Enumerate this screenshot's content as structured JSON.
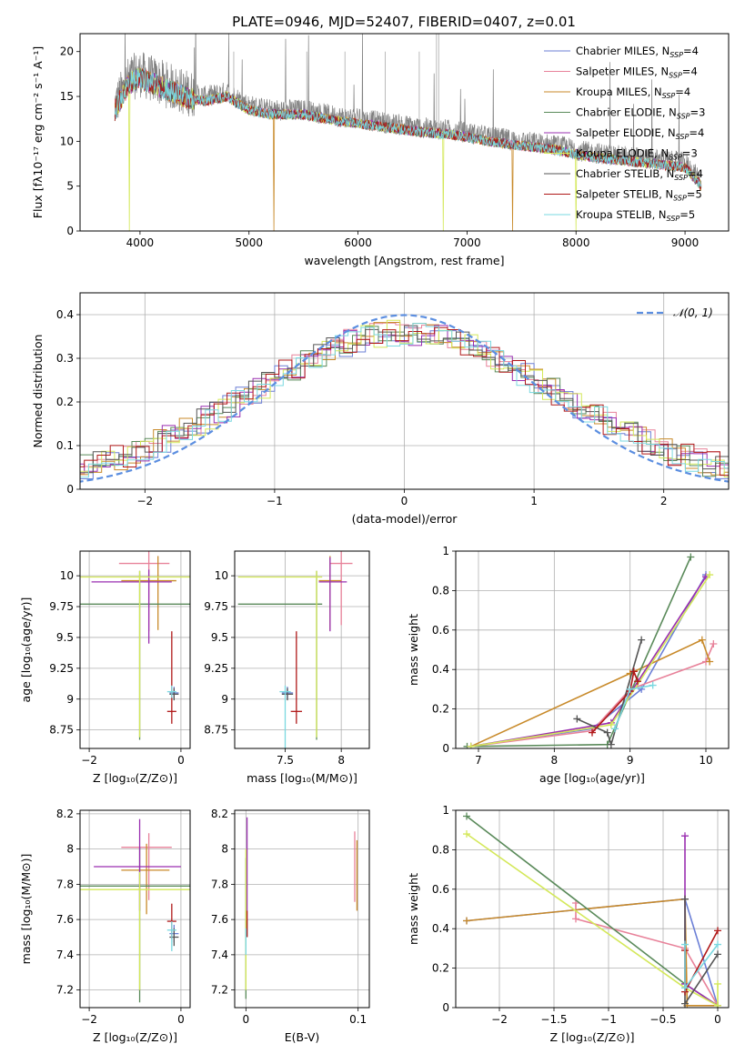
{
  "figure_title": "PLATE=0946, MJD=52407, FIBERID=0407, z=0.01",
  "models": [
    {
      "name": "Chabrier MILES",
      "nssp": "4",
      "color": "#6b7fd6"
    },
    {
      "name": "Salpeter MILES",
      "nssp": "4",
      "color": "#e8829a"
    },
    {
      "name": "Kroupa MILES",
      "nssp": "4",
      "color": "#c88a2a"
    },
    {
      "name": "Chabrier ELODIE",
      "nssp": "3",
      "color": "#5a8a5a"
    },
    {
      "name": "Salpeter ELODIE",
      "nssp": "4",
      "color": "#9a2fb0"
    },
    {
      "name": "Kroupa ELODIE",
      "nssp": "3",
      "color": "#d4e85a"
    },
    {
      "name": "Chabrier STELIB",
      "nssp": "4",
      "color": "#555555"
    },
    {
      "name": "Salpeter STELIB",
      "nssp": "5",
      "color": "#b01818"
    },
    {
      "name": "Kroupa STELIB",
      "nssp": "5",
      "color": "#7ad8e0"
    }
  ],
  "chart_data": [
    {
      "type": "line",
      "id": "spectrum",
      "xlabel": "wavelength [Angstrom, rest frame]",
      "ylabel": "Flux [fλ10⁻¹⁷ erg cm⁻² s⁻¹ A⁻¹]",
      "xlim": [
        3450,
        9400
      ],
      "ylim": [
        0,
        22
      ],
      "xticks": [
        4000,
        5000,
        6000,
        7000,
        8000,
        9000
      ],
      "yticks": [
        0,
        5,
        10,
        15,
        20
      ],
      "data_envelope": {
        "x": [
          3770,
          3900,
          4000,
          4200,
          4400,
          4600,
          4800,
          5000,
          5200,
          5500,
          5800,
          6000,
          6300,
          6600,
          6900,
          7200,
          7500,
          7800,
          8100,
          8400,
          8700,
          9000,
          9150
        ],
        "y": [
          14,
          17,
          17.5,
          16.5,
          15.5,
          15,
          15.5,
          14,
          13.5,
          13.5,
          12.8,
          12.5,
          12,
          11.5,
          11.2,
          10.5,
          10,
          9.6,
          8.8,
          8.4,
          8,
          7.6,
          5.5
        ]
      },
      "model_drops": [
        {
          "model": "Kroupa ELODIE",
          "x": 3900
        },
        {
          "model": "Kroupa MILES",
          "x": 5230
        },
        {
          "model": "Kroupa ELODIE",
          "x": 6780
        },
        {
          "model": "Kroupa MILES",
          "x": 7420
        },
        {
          "model": "Kroupa ELODIE",
          "x": 8000
        }
      ],
      "grid": false,
      "legend": "upper-right"
    },
    {
      "type": "histogram",
      "id": "residuals",
      "xlabel": "(data-model)/error",
      "ylabel": "Normed distribution",
      "xlim": [
        -2.5,
        2.5
      ],
      "ylim": [
        0,
        0.45
      ],
      "xticks": [
        -2,
        -1,
        0,
        1,
        2
      ],
      "yticks": [
        0.0,
        0.1,
        0.2,
        0.3,
        0.4
      ],
      "reference_label": "𝒩(0, 1)",
      "grid": true,
      "legend": "upper-right"
    },
    {
      "type": "scatter",
      "id": "age_vs_Z",
      "xlabel": "Z [log₁₀(Z/Z⊙)]",
      "ylabel": "age [log₁₀(age/yr)]",
      "xlim": [
        -2.2,
        0.2
      ],
      "ylim": [
        8.6,
        10.2
      ],
      "xticks": [
        -2,
        0
      ],
      "yticks": [
        8.75,
        9.0,
        9.25,
        9.5,
        9.75,
        10.0
      ],
      "points": [
        {
          "model": "Chabrier MILES",
          "x": -0.15,
          "y": 9.05,
          "xerr": [
            0.1,
            0.1
          ],
          "yerr": [
            0.05,
            0.05
          ]
        },
        {
          "model": "Salpeter MILES",
          "x": -0.7,
          "y": 10.1,
          "xerr": [
            0.65,
            0.45
          ],
          "yerr": [
            0.55,
            0.1
          ]
        },
        {
          "model": "Kroupa MILES",
          "x": -0.5,
          "y": 9.96,
          "xerr": [
            0.8,
            0.4
          ],
          "yerr": [
            0.4,
            0.2
          ]
        },
        {
          "model": "Chabrier ELODIE",
          "x": -0.9,
          "y": 9.77,
          "xerr": [
            1.3,
            1.1
          ],
          "yerr": [
            1.1,
            0.27
          ]
        },
        {
          "model": "Salpeter ELODIE",
          "x": -0.7,
          "y": 9.95,
          "xerr": [
            1.25,
            0.5
          ],
          "yerr": [
            0.5,
            0.1
          ]
        },
        {
          "model": "Kroupa ELODIE",
          "x": -0.9,
          "y": 9.99,
          "xerr": [
            1.3,
            1.1
          ],
          "yerr": [
            1.3,
            0.05
          ]
        },
        {
          "model": "Chabrier STELIB",
          "x": -0.15,
          "y": 9.04,
          "xerr": [
            0.1,
            0.1
          ],
          "yerr": [
            0.05,
            0.05
          ]
        },
        {
          "model": "Salpeter STELIB",
          "x": -0.2,
          "y": 8.9,
          "xerr": [
            0.1,
            0.1
          ],
          "yerr": [
            0.1,
            0.65
          ]
        },
        {
          "model": "Kroupa STELIB",
          "x": -0.2,
          "y": 9.06,
          "xerr": [
            0.1,
            0.1
          ],
          "yerr": [
            0.05,
            0.05
          ]
        }
      ],
      "grid": true
    },
    {
      "type": "scatter",
      "id": "age_vs_mass",
      "xlabel": "mass [log₁₀(M/M⊙)]",
      "ylabel": "",
      "xlim": [
        7.05,
        8.25
      ],
      "ylim": [
        8.6,
        10.2
      ],
      "xticks": [
        7.5,
        8.0
      ],
      "yticks": [
        8.75,
        9.0,
        9.25,
        9.5,
        9.75,
        10.0
      ],
      "points": [
        {
          "model": "Chabrier MILES",
          "x": 7.52,
          "y": 9.05,
          "xerr": [
            0.05,
            0.05
          ],
          "yerr": [
            0.05,
            0.05
          ]
        },
        {
          "model": "Salpeter MILES",
          "x": 8.0,
          "y": 10.1,
          "xerr": [
            0.1,
            0.1
          ],
          "yerr": [
            0.5,
            0.1
          ]
        },
        {
          "model": "Kroupa MILES",
          "x": 7.9,
          "y": 9.96,
          "xerr": [
            0.1,
            0.1
          ],
          "yerr": [
            0.4,
            0.2
          ]
        },
        {
          "model": "Chabrier ELODIE",
          "x": 7.78,
          "y": 9.77,
          "xerr": [
            0.7,
            0.05
          ],
          "yerr": [
            1.1,
            0.27
          ]
        },
        {
          "model": "Salpeter ELODIE",
          "x": 7.9,
          "y": 9.95,
          "xerr": [
            0.1,
            0.15
          ],
          "yerr": [
            0.4,
            0.2
          ]
        },
        {
          "model": "Kroupa ELODIE",
          "x": 7.78,
          "y": 9.99,
          "xerr": [
            0.7,
            0.05
          ],
          "yerr": [
            1.3,
            0.05
          ]
        },
        {
          "model": "Chabrier STELIB",
          "x": 7.52,
          "y": 9.04,
          "xerr": [
            0.05,
            0.05
          ],
          "yerr": [
            0.05,
            0.05
          ]
        },
        {
          "model": "Salpeter STELIB",
          "x": 7.6,
          "y": 8.9,
          "xerr": [
            0.05,
            0.05
          ],
          "yerr": [
            0.1,
            0.65
          ]
        },
        {
          "model": "Kroupa STELIB",
          "x": 7.5,
          "y": 9.06,
          "xerr": [
            0.05,
            0.05
          ],
          "yerr": [
            0.5,
            0.05
          ]
        }
      ],
      "grid": true
    },
    {
      "type": "line",
      "id": "massweight_vs_age",
      "xlabel": "age [log₁₀(age/yr)]",
      "ylabel": "mass weight",
      "xlim": [
        6.7,
        10.3
      ],
      "ylim": [
        0,
        1.0
      ],
      "xticks": [
        7,
        8,
        9,
        10
      ],
      "yticks": [
        0.0,
        0.2,
        0.4,
        0.6,
        0.8,
        1.0
      ],
      "series": [
        {
          "model": "Chabrier MILES",
          "x": [
            6.9,
            8.5,
            9.15,
            10.0
          ],
          "y": [
            0.01,
            0.1,
            0.3,
            0.88
          ]
        },
        {
          "model": "Salpeter MILES",
          "x": [
            6.9,
            8.5,
            9.0,
            10.0,
            10.1
          ],
          "y": [
            0.01,
            0.09,
            0.3,
            0.44,
            0.53
          ]
        },
        {
          "model": "Kroupa MILES",
          "x": [
            6.9,
            9.0,
            9.95,
            10.05
          ],
          "y": [
            0.01,
            0.38,
            0.55,
            0.44
          ]
        },
        {
          "model": "Chabrier ELODIE",
          "x": [
            6.85,
            8.7,
            9.8
          ],
          "y": [
            0.01,
            0.02,
            0.97
          ]
        },
        {
          "model": "Salpeter ELODIE",
          "x": [
            6.9,
            8.75,
            10.0
          ],
          "y": [
            0.01,
            0.13,
            0.87
          ]
        },
        {
          "model": "Kroupa ELODIE",
          "x": [
            6.9,
            8.75,
            10.05
          ],
          "y": [
            0.01,
            0.12,
            0.88
          ]
        },
        {
          "model": "Chabrier STELIB",
          "x": [
            8.3,
            8.7,
            8.75,
            9.15
          ],
          "y": [
            0.15,
            0.08,
            0.02,
            0.55
          ]
        },
        {
          "model": "Salpeter STELIB",
          "x": [
            8.5,
            9.0,
            9.05,
            9.1
          ],
          "y": [
            0.08,
            0.29,
            0.39,
            0.34
          ]
        },
        {
          "model": "Kroupa STELIB",
          "x": [
            8.8,
            9.0,
            9.3
          ],
          "y": [
            0.1,
            0.3,
            0.32
          ]
        }
      ],
      "grid": true
    },
    {
      "type": "scatter",
      "id": "mass_vs_Z",
      "xlabel": "Z [log₁₀(Z/Z⊙)]",
      "ylabel": "mass [log₁₀(M/M⊙)]",
      "xlim": [
        -2.2,
        0.2
      ],
      "ylim": [
        7.1,
        8.22
      ],
      "xticks": [
        -2,
        0
      ],
      "yticks": [
        7.2,
        7.4,
        7.6,
        7.8,
        8.0,
        8.2
      ],
      "points": [
        {
          "model": "Chabrier MILES",
          "x": -0.15,
          "y": 7.52,
          "xerr": [
            0.1,
            0.1
          ],
          "yerr": [
            0.05,
            0.05
          ]
        },
        {
          "model": "Salpeter MILES",
          "x": -0.7,
          "y": 8.01,
          "xerr": [
            0.6,
            0.5
          ],
          "yerr": [
            0.3,
            0.08
          ]
        },
        {
          "model": "Kroupa MILES",
          "x": -0.75,
          "y": 7.88,
          "xerr": [
            0.55,
            0.5
          ],
          "yerr": [
            0.25,
            0.15
          ]
        },
        {
          "model": "Chabrier ELODIE",
          "x": -0.9,
          "y": 7.79,
          "xerr": [
            1.3,
            1.1
          ],
          "yerr": [
            0.66,
            0.22
          ]
        },
        {
          "model": "Salpeter ELODIE",
          "x": -0.9,
          "y": 7.9,
          "xerr": [
            1.0,
            0.9
          ],
          "yerr": [
            0.25,
            0.27
          ]
        },
        {
          "model": "Kroupa ELODIE",
          "x": -0.9,
          "y": 7.77,
          "xerr": [
            1.3,
            1.1
          ],
          "yerr": [
            0.57,
            0.1
          ]
        },
        {
          "model": "Chabrier STELIB",
          "x": -0.15,
          "y": 7.5,
          "xerr": [
            0.1,
            0.1
          ],
          "yerr": [
            0.05,
            0.05
          ]
        },
        {
          "model": "Salpeter STELIB",
          "x": -0.2,
          "y": 7.59,
          "xerr": [
            0.1,
            0.1
          ],
          "yerr": [
            0.1,
            0.1
          ]
        },
        {
          "model": "Kroupa STELIB",
          "x": -0.2,
          "y": 7.54,
          "xerr": [
            0.1,
            0.1
          ],
          "yerr": [
            0.12,
            0.05
          ]
        }
      ],
      "grid": true
    },
    {
      "type": "scatter",
      "id": "mass_vs_EBV",
      "xlabel": "E(B-V)",
      "ylabel": "",
      "xlim": [
        -0.01,
        0.11
      ],
      "ylim": [
        7.1,
        8.22
      ],
      "xticks": [
        0.0,
        0.1
      ],
      "yticks": [
        7.2,
        7.4,
        7.6,
        7.8,
        8.0,
        8.2
      ],
      "points": [
        {
          "model": "Chabrier MILES",
          "x": 0.0,
          "y": 7.5,
          "xerr": [
            0,
            0
          ],
          "yerr": [
            0.05,
            0.05
          ]
        },
        {
          "model": "Salpeter MILES",
          "x": 0.097,
          "y": 7.9,
          "xerr": [
            0,
            0
          ],
          "yerr": [
            0.2,
            0.2
          ]
        },
        {
          "model": "Kroupa MILES",
          "x": 0.099,
          "y": 7.85,
          "xerr": [
            0,
            0
          ],
          "yerr": [
            0.2,
            0.2
          ]
        },
        {
          "model": "Chabrier ELODIE",
          "x": 0.0,
          "y": 7.65,
          "xerr": [
            0,
            0
          ],
          "yerr": [
            0.5,
            0.3
          ]
        },
        {
          "model": "Salpeter ELODIE",
          "x": 0.001,
          "y": 7.9,
          "xerr": [
            0,
            0
          ],
          "yerr": [
            0.3,
            0.28
          ]
        },
        {
          "model": "Kroupa ELODIE",
          "x": 0.0,
          "y": 7.65,
          "xerr": [
            0,
            0
          ],
          "yerr": [
            0.45,
            0.35
          ]
        },
        {
          "model": "Chabrier STELIB",
          "x": 0.001,
          "y": 7.55,
          "xerr": [
            0,
            0
          ],
          "yerr": [
            0.05,
            0.05
          ]
        },
        {
          "model": "Salpeter STELIB",
          "x": 0.001,
          "y": 7.6,
          "xerr": [
            0,
            0
          ],
          "yerr": [
            0.1,
            0.05
          ]
        },
        {
          "model": "Kroupa STELIB",
          "x": 0.0,
          "y": 7.5,
          "xerr": [
            0,
            0
          ],
          "yerr": [
            0.1,
            0.05
          ]
        }
      ],
      "grid": true
    },
    {
      "type": "line",
      "id": "massweight_vs_Z",
      "xlabel": "Z [log₁₀(Z/Z⊙)]",
      "ylabel": "mass weight",
      "xlim": [
        -2.4,
        0.1
      ],
      "ylim": [
        0,
        1.0
      ],
      "xticks": [
        -2.0,
        -1.5,
        -1.0,
        -0.5,
        0.0
      ],
      "yticks": [
        0.0,
        0.2,
        0.4,
        0.6,
        0.8,
        1.0
      ],
      "series": [
        {
          "model": "Chabrier MILES",
          "x": [
            -2.3,
            -0.3,
            0.0
          ],
          "y": [
            0.44,
            0.55,
            0.01
          ]
        },
        {
          "model": "Salpeter MILES",
          "x": [
            -1.3,
            -1.3,
            -0.3,
            0.0
          ],
          "y": [
            0.53,
            0.45,
            0.3,
            0.01
          ]
        },
        {
          "model": "Kroupa MILES",
          "x": [
            -2.3,
            -0.3,
            -0.28,
            0.0
          ],
          "y": [
            0.44,
            0.55,
            0.01,
            0.01
          ]
        },
        {
          "model": "Chabrier ELODIE",
          "x": [
            -2.3,
            -0.3,
            0.0
          ],
          "y": [
            0.97,
            0.12,
            0.01
          ]
        },
        {
          "model": "Salpeter ELODIE",
          "x": [
            -0.3,
            -0.3,
            0.0
          ],
          "y": [
            0.87,
            0.12,
            0.01
          ]
        },
        {
          "model": "Kroupa ELODIE",
          "x": [
            -2.3,
            -0.3,
            0.0,
            0.0
          ],
          "y": [
            0.88,
            0.1,
            0.01,
            0.12
          ]
        },
        {
          "model": "Chabrier STELIB",
          "x": [
            -0.3,
            -0.3,
            0.0
          ],
          "y": [
            0.55,
            0.02,
            0.27
          ]
        },
        {
          "model": "Salpeter STELIB",
          "x": [
            -0.3,
            -0.3,
            0.0
          ],
          "y": [
            0.29,
            0.08,
            0.39
          ]
        },
        {
          "model": "Kroupa STELIB",
          "x": [
            -0.3,
            -0.3,
            0.0
          ],
          "y": [
            0.32,
            0.1,
            0.32
          ]
        }
      ],
      "grid": true
    }
  ]
}
